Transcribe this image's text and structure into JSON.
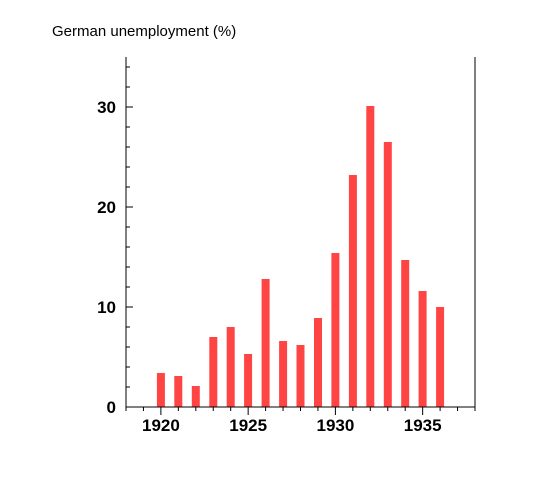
{
  "chart_data": {
    "type": "bar",
    "title": "German unemployment (%)",
    "xlabel": "",
    "ylabel": "",
    "x": [
      1920,
      1921,
      1922,
      1923,
      1924,
      1925,
      1926,
      1927,
      1928,
      1929,
      1930,
      1931,
      1932,
      1933,
      1934,
      1935,
      1936
    ],
    "values": [
      3.4,
      3.1,
      2.1,
      7.0,
      8.0,
      5.3,
      12.8,
      6.6,
      6.2,
      8.9,
      15.4,
      23.2,
      30.1,
      26.5,
      14.7,
      11.6,
      10.0
    ],
    "xlim": [
      1918,
      1938
    ],
    "ylim": [
      0,
      35
    ],
    "xticks": [
      "1920",
      "1925",
      "1930",
      "1935"
    ],
    "yticks": [
      "0",
      "10",
      "20",
      "30"
    ],
    "bar_color": "#ff4444",
    "axis_color": "#000000",
    "grid": false,
    "legend": "none"
  }
}
